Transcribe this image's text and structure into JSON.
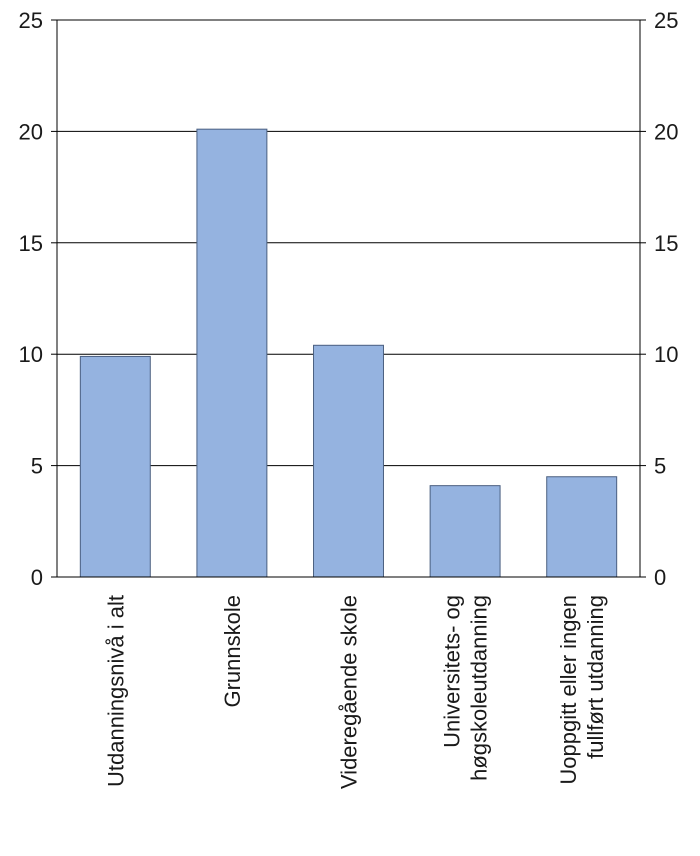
{
  "chart_data": {
    "type": "bar",
    "title": "",
    "xlabel": "",
    "ylabel": "",
    "ylim": [
      0,
      25
    ],
    "yticks": [
      0,
      5,
      10,
      15,
      20,
      25
    ],
    "grid": true,
    "y_axis_both_sides": true,
    "bar_color": "#95b3e0",
    "bar_edge_color": "#4a5f80",
    "categories": [
      [
        "Utdanningsnivå i alt"
      ],
      [
        "Grunnskole"
      ],
      [
        "Videregående skole"
      ],
      [
        "Universitets- og",
        "høgskoleutdanning"
      ],
      [
        "Uoppgitt eller ingen",
        "fullført utdanning"
      ]
    ],
    "values": [
      9.9,
      20.1,
      10.4,
      4.1,
      4.5
    ]
  }
}
